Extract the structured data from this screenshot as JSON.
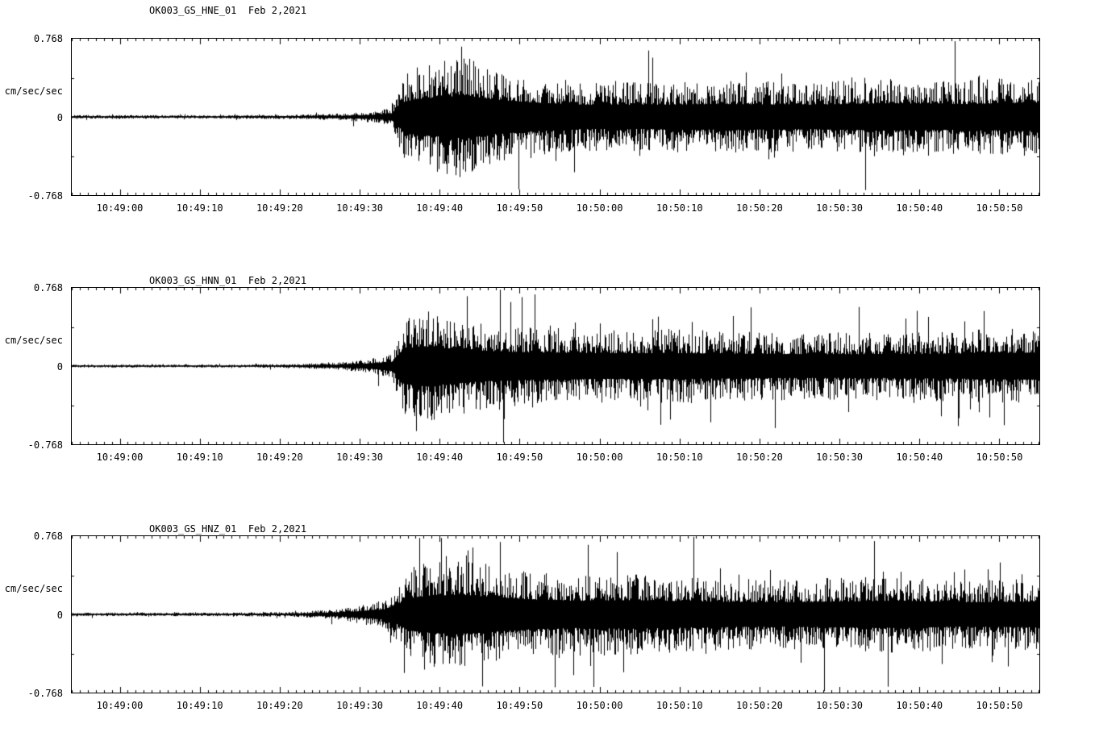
{
  "accent_colors": {
    "trace": "#000000",
    "background": "#ffffff"
  },
  "axis": {
    "y_max": "0.768",
    "y_zero": "0",
    "y_min": "-0.768",
    "y_unit": "cm/sec/sec",
    "x_ticks": [
      "10:49:00",
      "10:49:10",
      "10:49:20",
      "10:49:30",
      "10:49:40",
      "10:49:50",
      "10:50:00",
      "10:50:10",
      "10:50:20",
      "10:50:30",
      "10:50:40",
      "10:50:50"
    ],
    "x_tick_interval_s": 10,
    "x_first_tick_offset_s": 6,
    "duration_s": 121,
    "grid": false,
    "legend": false
  },
  "chart_data": [
    {
      "type": "line",
      "subtype": "seismogram",
      "title": "OK003_GS_HNE_01  Feb 2,2021",
      "ylabel": "cm/sec/sec",
      "ylim": [
        -0.768,
        0.768
      ],
      "seed": 1234,
      "envelope": [
        [
          0,
          0.018
        ],
        [
          20,
          0.018
        ],
        [
          28,
          0.022
        ],
        [
          34,
          0.035
        ],
        [
          38,
          0.06
        ],
        [
          40,
          0.1
        ],
        [
          41.5,
          0.42
        ],
        [
          43,
          0.5
        ],
        [
          46,
          0.55
        ],
        [
          49,
          0.6
        ],
        [
          53,
          0.48
        ],
        [
          58,
          0.4
        ],
        [
          64,
          0.34
        ],
        [
          72,
          0.34
        ],
        [
          82,
          0.36
        ],
        [
          92,
          0.34
        ],
        [
          102,
          0.38
        ],
        [
          112,
          0.36
        ],
        [
          121,
          0.4
        ]
      ]
    },
    {
      "type": "line",
      "subtype": "seismogram",
      "title": "OK003_GS_HNN_01  Feb 2,2021",
      "ylabel": "cm/sec/sec",
      "ylim": [
        -0.768,
        0.768
      ],
      "seed": 5678,
      "envelope": [
        [
          0,
          0.015
        ],
        [
          20,
          0.015
        ],
        [
          28,
          0.02
        ],
        [
          34,
          0.04
        ],
        [
          37,
          0.07
        ],
        [
          40,
          0.12
        ],
        [
          41.5,
          0.5
        ],
        [
          44,
          0.55
        ],
        [
          47,
          0.5
        ],
        [
          52,
          0.42
        ],
        [
          58,
          0.38
        ],
        [
          66,
          0.36
        ],
        [
          76,
          0.36
        ],
        [
          86,
          0.34
        ],
        [
          96,
          0.33
        ],
        [
          106,
          0.34
        ],
        [
          114,
          0.36
        ],
        [
          121,
          0.38
        ]
      ]
    },
    {
      "type": "line",
      "subtype": "seismogram",
      "title": "OK003_GS_HNZ_01  Feb 2,2021",
      "ylabel": "cm/sec/sec",
      "ylim": [
        -0.768,
        0.768
      ],
      "seed": 9012,
      "envelope": [
        [
          0,
          0.018
        ],
        [
          20,
          0.018
        ],
        [
          28,
          0.025
        ],
        [
          33,
          0.05
        ],
        [
          36,
          0.09
        ],
        [
          39,
          0.14
        ],
        [
          41,
          0.3
        ],
        [
          42,
          0.45
        ],
        [
          44,
          0.5
        ],
        [
          48,
          0.55
        ],
        [
          52,
          0.5
        ],
        [
          57,
          0.42
        ],
        [
          63,
          0.38
        ],
        [
          70,
          0.4
        ],
        [
          78,
          0.36
        ],
        [
          88,
          0.34
        ],
        [
          96,
          0.36
        ],
        [
          104,
          0.38
        ],
        [
          112,
          0.34
        ],
        [
          121,
          0.36
        ]
      ]
    }
  ]
}
